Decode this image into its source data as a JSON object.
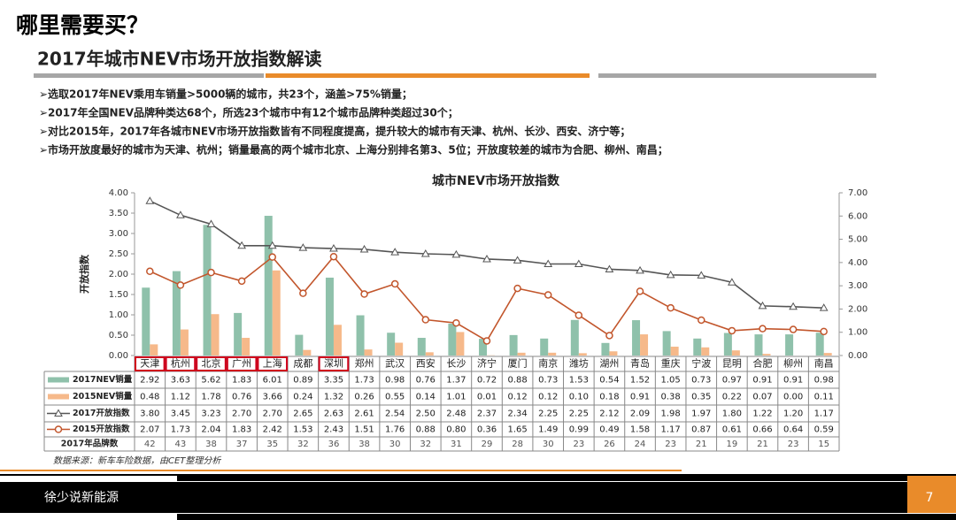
{
  "header": {
    "title": "哪里需要买？",
    "subtitle": "2017年城市NEV市场开放指数解读",
    "bullets": [
      "➢选取2017年NEV乘用车销量>5000辆的城市，共23个，涵盖>75%销量；",
      "➢2017年全国NEV品牌种类达68个，所选23个城市中有12个城市品牌种类超过30个；",
      "➢对比2015年，2017年各城市NEV市场开放指数皆有不同程度提高，提升较大的城市有天津、杭州、长沙、西安、济宁等；",
      "➢市场开放度最好的城市为天津、杭州；销量最高的两个城市北京、上海分别排名第3、5位；开放度较差的城市为合肥、柳州、南昌；"
    ]
  },
  "chart_data": {
    "type": "combo",
    "title": "城市NEV市场开放指数",
    "ylabel": "开放指数",
    "categories": [
      "天津",
      "杭州",
      "北京",
      "广州",
      "上海",
      "成都",
      "深圳",
      "郑州",
      "武汉",
      "西安",
      "长沙",
      "济宁",
      "厦门",
      "南京",
      "潍坊",
      "湖州",
      "青岛",
      "重庆",
      "宁波",
      "昆明",
      "合肥",
      "柳州",
      "南昌"
    ],
    "highlighted": [
      0,
      1,
      2,
      3,
      4,
      6
    ],
    "series": [
      {
        "name": "2017NEV销量",
        "type": "bar",
        "axis": "y2",
        "color": "#8fc1ab",
        "values": [
          2.92,
          3.63,
          5.62,
          1.83,
          6.01,
          0.89,
          3.35,
          1.73,
          0.98,
          0.76,
          1.37,
          0.72,
          0.88,
          0.73,
          1.53,
          0.54,
          1.52,
          1.05,
          0.73,
          0.97,
          0.91,
          0.91,
          0.98
        ],
        "value_labels": [
          "2.92",
          "3.63",
          "5.62",
          "1.83",
          "6.01",
          "0.89",
          "3.35",
          "1.73",
          "0.98",
          "0.76",
          "1.37",
          "0.72",
          "0.88",
          "0.73",
          "1.53",
          "0.54",
          "1.52",
          "1.05",
          "0.73",
          "0.97",
          "0.91",
          "0.91",
          "0.98"
        ]
      },
      {
        "name": "2015NEV销量",
        "type": "bar",
        "axis": "y2",
        "color": "#f6b98a",
        "values": [
          0.48,
          1.12,
          1.78,
          0.76,
          3.66,
          0.24,
          1.32,
          0.26,
          0.55,
          0.14,
          1.01,
          0.01,
          0.12,
          0.12,
          0.1,
          0.18,
          0.91,
          0.38,
          0.35,
          0.22,
          0.07,
          0.0,
          0.11
        ],
        "value_labels": [
          "0.48",
          "1.12",
          "1.78",
          "0.76",
          "3.66",
          "0.24",
          "1.32",
          "0.26",
          "0.55",
          "0.14",
          "1.01",
          "0.01",
          "0.12",
          "0.12",
          "0.10",
          "0.18",
          "0.91",
          "0.38",
          "0.35",
          "0.22",
          "0.07",
          "0.00",
          "0.11"
        ]
      },
      {
        "name": "2017开放指数",
        "type": "line",
        "marker": "triangle",
        "color": "#555555",
        "values": [
          3.8,
          3.45,
          3.23,
          2.7,
          2.7,
          2.65,
          2.63,
          2.61,
          2.54,
          2.5,
          2.48,
          2.37,
          2.34,
          2.25,
          2.25,
          2.12,
          2.09,
          1.98,
          1.97,
          1.8,
          1.22,
          1.2,
          1.17
        ],
        "value_labels": [
          "3.80",
          "3.45",
          "3.23",
          "2.70",
          "2.70",
          "2.65",
          "2.63",
          "2.61",
          "2.54",
          "2.50",
          "2.48",
          "2.37",
          "2.34",
          "2.25",
          "2.25",
          "2.12",
          "2.09",
          "1.98",
          "1.97",
          "1.80",
          "1.22",
          "1.20",
          "1.17"
        ]
      },
      {
        "name": "2015开放指数",
        "type": "line",
        "marker": "circle",
        "color": "#c2562c",
        "values": [
          2.07,
          1.73,
          2.04,
          1.83,
          2.42,
          1.53,
          2.43,
          1.51,
          1.76,
          0.88,
          0.8,
          0.36,
          1.65,
          1.49,
          0.99,
          0.49,
          1.58,
          1.17,
          0.87,
          0.61,
          0.66,
          0.64,
          0.59
        ],
        "value_labels": [
          "2.07",
          "1.73",
          "2.04",
          "1.83",
          "2.42",
          "1.53",
          "2.43",
          "1.51",
          "1.76",
          "0.88",
          "0.80",
          "0.36",
          "1.65",
          "1.49",
          "0.99",
          "0.49",
          "1.58",
          "1.17",
          "0.87",
          "0.61",
          "0.66",
          "0.64",
          "0.59"
        ]
      }
    ],
    "table_rows": [
      {
        "name": "2017年品牌数",
        "values": [
          42,
          43,
          38,
          37,
          35,
          32,
          36,
          38,
          30,
          32,
          31,
          29,
          28,
          30,
          23,
          26,
          24,
          23,
          21,
          19,
          21,
          23,
          15
        ]
      }
    ],
    "ylim": [
      0,
      4
    ],
    "yticks": [
      {
        "value": 0,
        "label": "0.00"
      },
      {
        "value": 0.5,
        "label": "0.50"
      },
      {
        "value": 1,
        "label": "1.00"
      },
      {
        "value": 1.5,
        "label": "1.50"
      },
      {
        "value": 2,
        "label": "2.00"
      },
      {
        "value": 2.5,
        "label": "2.50"
      },
      {
        "value": 3,
        "label": "3.00"
      },
      {
        "value": 3.5,
        "label": "3.50"
      },
      {
        "value": 4,
        "label": "4.00"
      }
    ],
    "y2lim": [
      0,
      7
    ],
    "y2ticks": [
      {
        "value": 0,
        "label": "0.00"
      },
      {
        "value": 1,
        "label": "1.00"
      },
      {
        "value": 2,
        "label": "2.00"
      },
      {
        "value": 3,
        "label": "3.00"
      },
      {
        "value": 4,
        "label": "4.00"
      },
      {
        "value": 5,
        "label": "5.00"
      },
      {
        "value": 6,
        "label": "6.00"
      },
      {
        "value": 7,
        "label": "7.00"
      }
    ],
    "source": "数据来源：新车车险数据，由CET整理分析"
  },
  "footer": {
    "text": "徐少说新能源",
    "page": "7"
  }
}
